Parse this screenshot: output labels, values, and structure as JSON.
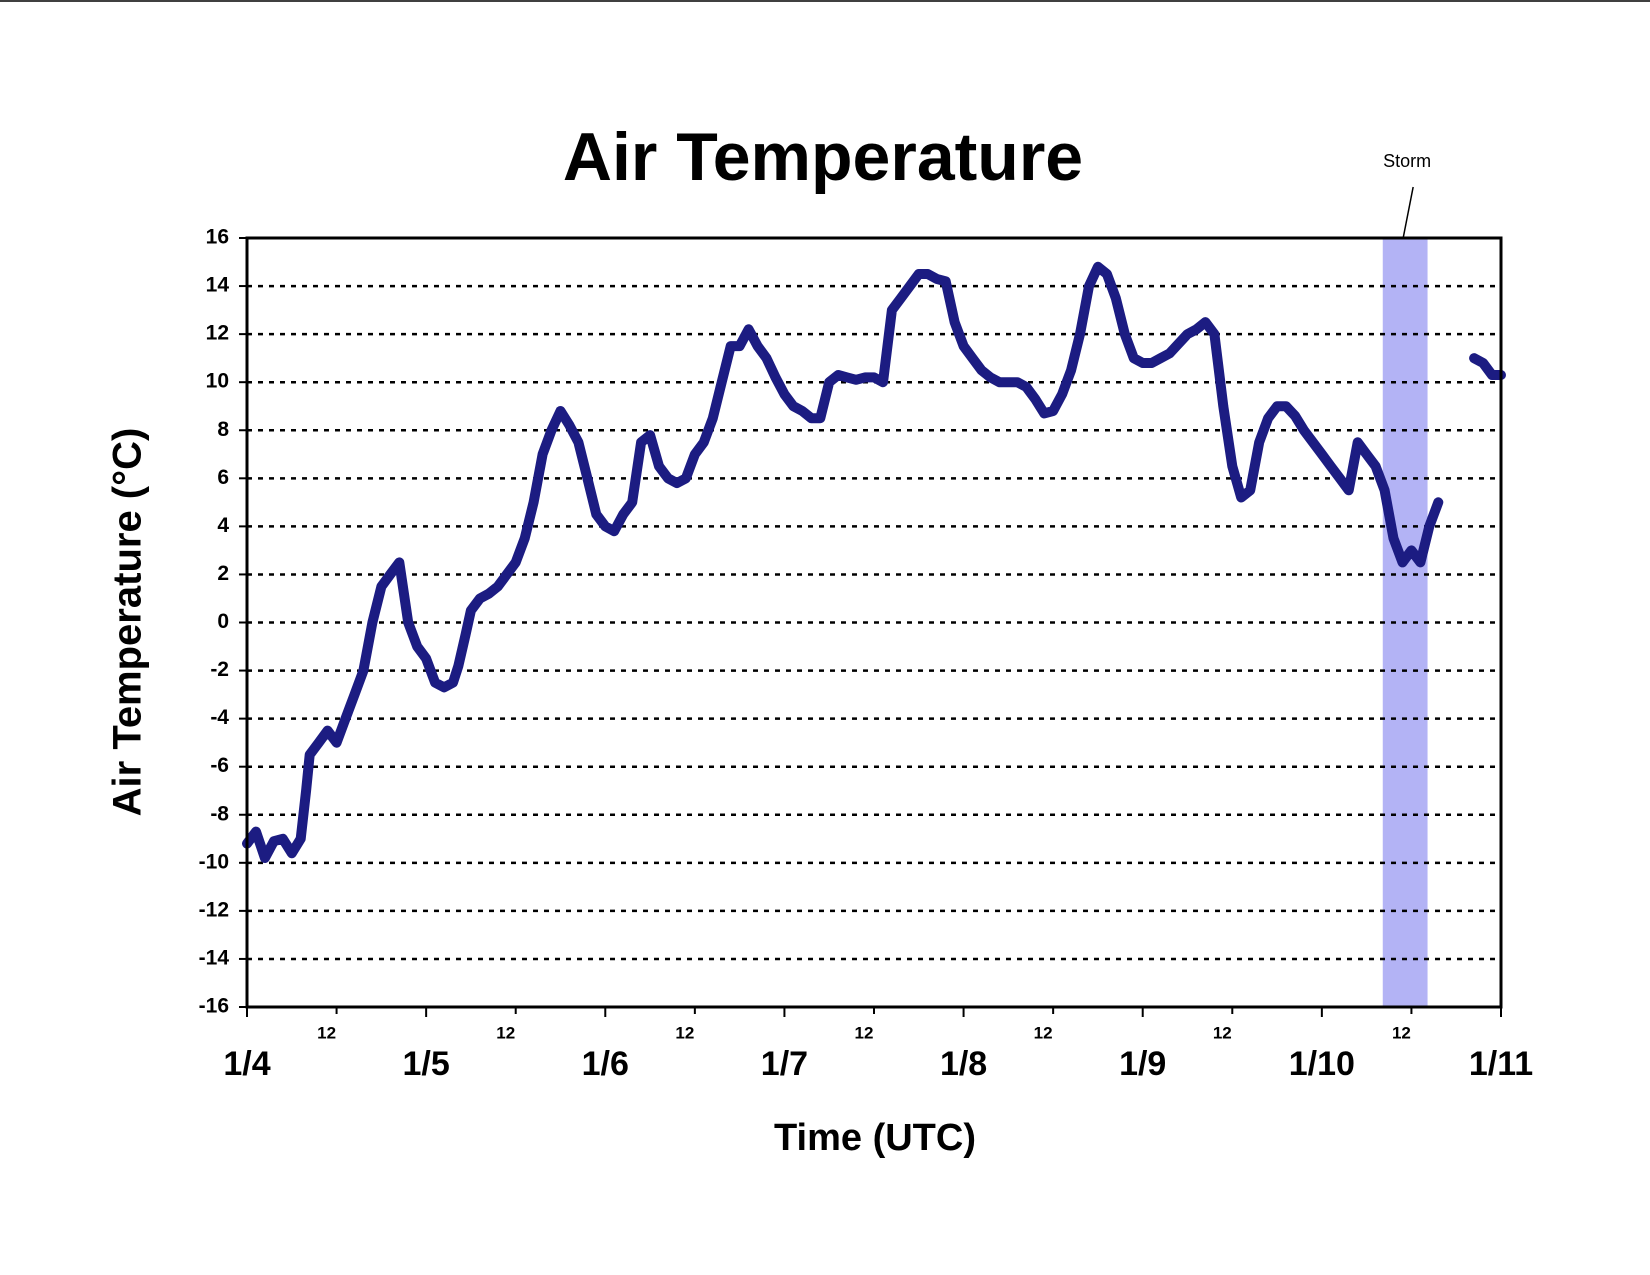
{
  "chart_data": {
    "type": "line",
    "title": "Air Temperature",
    "xlabel": "Time (UTC)",
    "ylabel": "Air Temperature (°C)",
    "x": [
      0,
      0.05,
      0.1,
      0.15,
      0.2,
      0.25,
      0.3,
      0.33,
      0.35,
      0.4,
      0.45,
      0.5,
      0.55,
      0.6,
      0.65,
      0.7,
      0.75,
      0.8,
      0.85,
      0.9,
      0.95,
      1.0,
      1.05,
      1.1,
      1.15,
      1.18,
      1.22,
      1.25,
      1.3,
      1.35,
      1.4,
      1.45,
      1.5,
      1.55,
      1.6,
      1.65,
      1.7,
      1.75,
      1.8,
      1.85,
      1.9,
      1.95,
      2.0,
      2.05,
      2.1,
      2.15,
      2.2,
      2.25,
      2.3,
      2.35,
      2.4,
      2.45,
      2.5,
      2.55,
      2.6,
      2.65,
      2.7,
      2.75,
      2.8,
      2.85,
      2.9,
      2.95,
      3.0,
      3.05,
      3.1,
      3.15,
      3.2,
      3.25,
      3.3,
      3.35,
      3.4,
      3.45,
      3.5,
      3.55,
      3.6,
      3.65,
      3.7,
      3.75,
      3.8,
      3.85,
      3.9,
      3.95,
      4.0,
      4.05,
      4.1,
      4.15,
      4.2,
      4.25,
      4.3,
      4.35,
      4.4,
      4.45,
      4.5,
      4.55,
      4.6,
      4.65,
      4.7,
      4.75,
      4.8,
      4.85,
      4.9,
      4.95,
      5.0,
      5.05,
      5.1,
      5.15,
      5.2,
      5.25,
      5.3,
      5.35,
      5.4,
      5.45,
      5.5,
      5.55,
      5.6,
      5.65,
      5.7,
      5.75,
      5.8,
      5.85,
      5.9,
      5.95,
      6.0,
      6.05,
      6.1,
      6.15,
      6.2,
      6.25,
      6.3,
      6.35,
      6.4,
      6.45,
      6.5,
      6.55,
      6.6,
      6.65,
      6.75,
      6.85,
      6.9,
      6.95,
      7.0
    ],
    "series": [
      {
        "name": "Air Temperature",
        "color": "#1c1c82",
        "values": [
          -9.2,
          -8.7,
          -9.8,
          -9.1,
          -9,
          -9.6,
          -9,
          -7,
          -5.5,
          -5,
          -4.5,
          -5,
          -4,
          -3,
          -2,
          0,
          1.5,
          2,
          2.5,
          0,
          -1,
          -1.5,
          -2.5,
          -2.7,
          -2.5,
          -1.8,
          -0.5,
          0.5,
          1,
          1.2,
          1.5,
          2,
          2.5,
          3.5,
          5,
          7,
          8,
          8.8,
          8.2,
          7.5,
          6,
          4.5,
          4,
          3.8,
          4.5,
          5,
          7.5,
          7.8,
          6.5,
          6,
          5.8,
          6,
          7,
          7.5,
          8.5,
          10,
          11.5,
          11.5,
          12.2,
          11.5,
          11,
          10.2,
          9.5,
          9,
          8.8,
          8.5,
          8.5,
          10,
          10.3,
          10.2,
          10.1,
          10.2,
          10.2,
          10,
          13,
          13.5,
          14,
          14.5,
          14.5,
          14.3,
          14.2,
          12.5,
          11.5,
          11,
          10.5,
          10.2,
          10,
          10,
          10,
          9.8,
          9.3,
          8.7,
          8.8,
          9.5,
          10.5,
          12,
          14,
          14.8,
          14.5,
          13.5,
          12,
          11,
          10.8,
          10.8,
          11,
          11.2,
          11.6,
          12,
          12.2,
          12.5,
          12,
          9,
          6.5,
          5.2,
          5.5,
          7.5,
          8.5,
          9,
          9,
          8.6,
          8,
          7.5,
          7,
          6.5,
          6,
          5.5,
          7.5,
          7,
          6.5,
          5.5,
          3.5,
          2.5,
          3,
          2.5,
          4,
          5,
          null,
          11,
          10.8,
          10.3,
          10.3
        ]
      }
    ],
    "xlim": [
      0,
      7
    ],
    "ylim": [
      -16,
      16
    ],
    "xticks": [
      {
        "value": 0,
        "label": "1/4"
      },
      {
        "value": 0.5,
        "label": "12"
      },
      {
        "value": 1,
        "label": "1/5"
      },
      {
        "value": 1.5,
        "label": "12"
      },
      {
        "value": 2,
        "label": "1/6"
      },
      {
        "value": 2.5,
        "label": "12"
      },
      {
        "value": 3,
        "label": "1/7"
      },
      {
        "value": 3.5,
        "label": "12"
      },
      {
        "value": 4,
        "label": "1/8"
      },
      {
        "value": 4.5,
        "label": "12"
      },
      {
        "value": 5,
        "label": "1/9"
      },
      {
        "value": 5.5,
        "label": "12"
      },
      {
        "value": 6,
        "label": "1/10"
      },
      {
        "value": 6.5,
        "label": "12"
      },
      {
        "value": 7,
        "label": "1/11"
      }
    ],
    "yticks": [
      -16,
      -14,
      -12,
      -10,
      -8,
      -6,
      -4,
      -2,
      0,
      2,
      4,
      6,
      8,
      10,
      12,
      14,
      16
    ],
    "grid": true,
    "annotations": [
      {
        "text": "Storm",
        "x0": 6.34,
        "x1": 6.59,
        "color": "#b3b3f5"
      }
    ]
  }
}
